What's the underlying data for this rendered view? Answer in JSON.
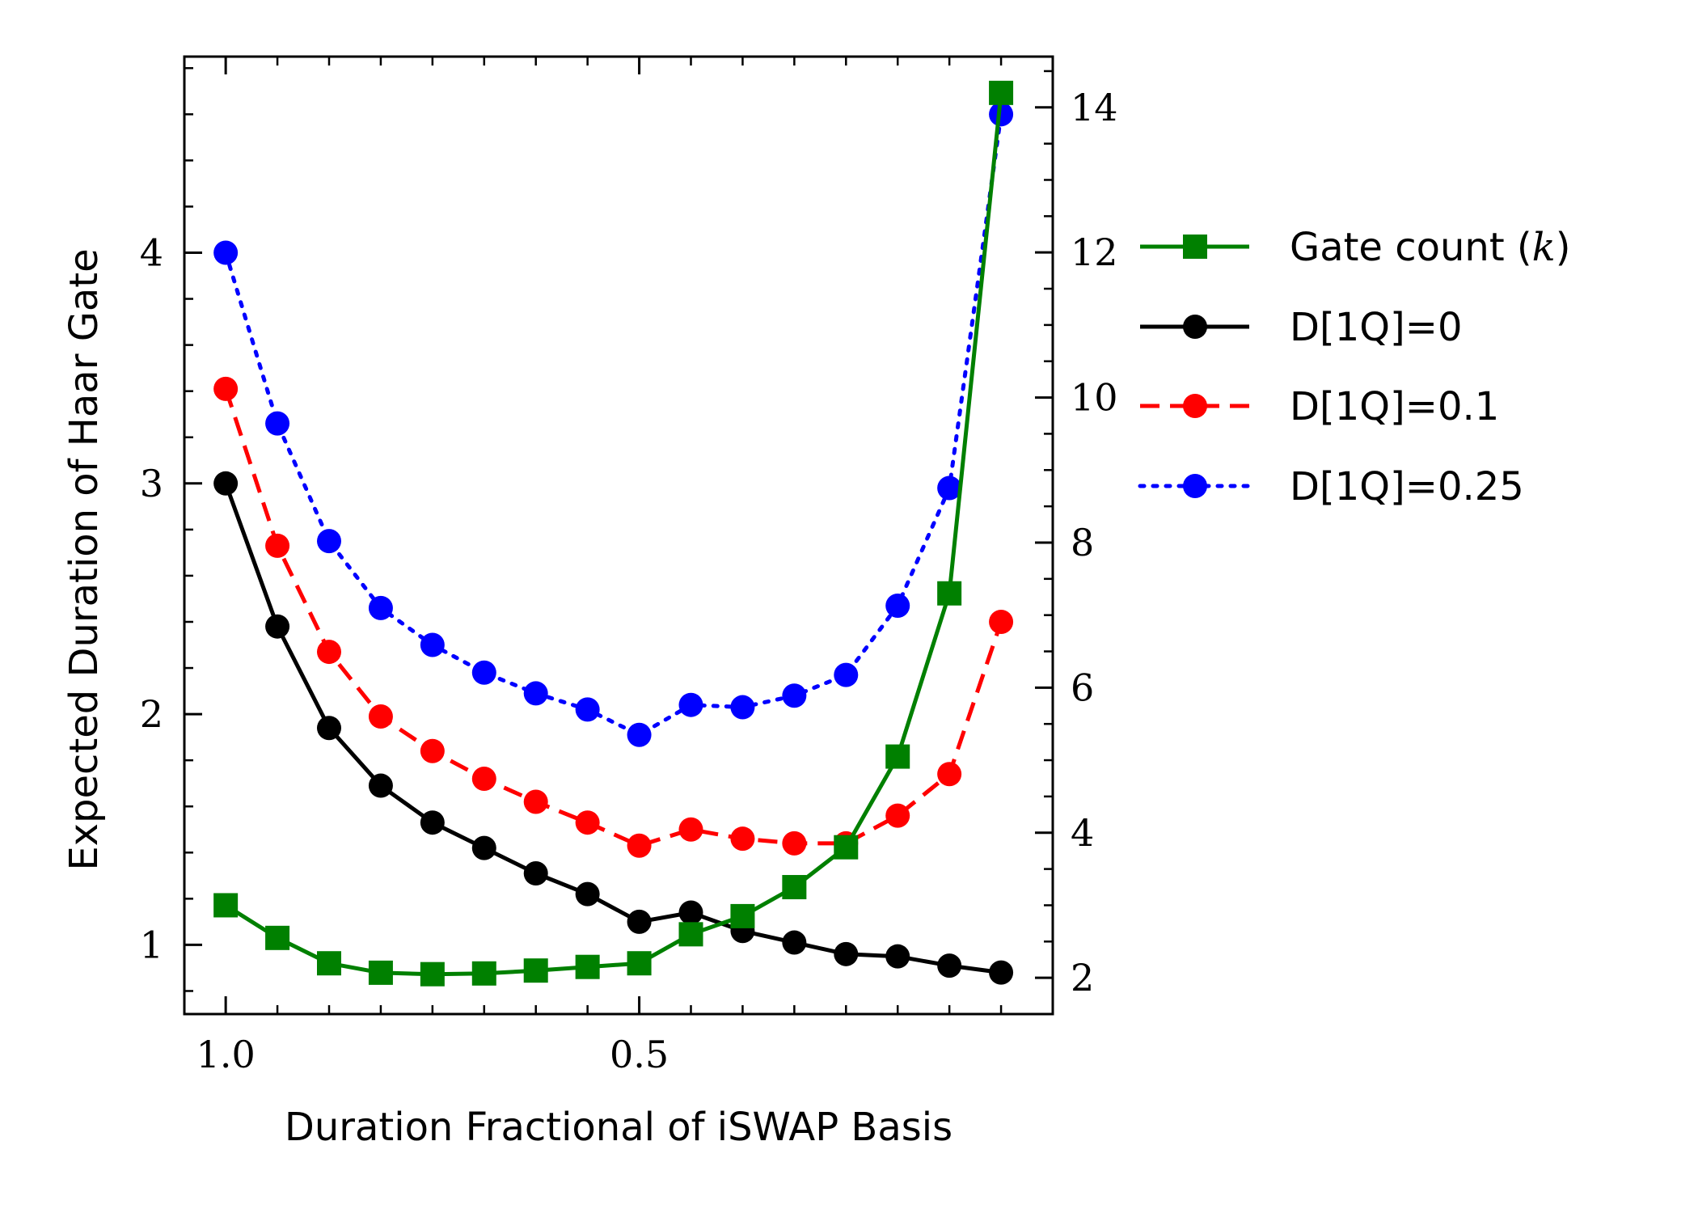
{
  "chart_data": {
    "type": "line",
    "xlabel": "Duration Fractional of iSWAP Basis",
    "ylabel_left": "Expected Duration of Haar Gate",
    "x": [
      1.0,
      0.9375,
      0.875,
      0.8125,
      0.75,
      0.6875,
      0.625,
      0.5625,
      0.5,
      0.4375,
      0.375,
      0.3125,
      0.25,
      0.1875,
      0.125,
      0.0625
    ],
    "xlim": [
      1.05,
      0.0
    ],
    "xticks": [
      1.0,
      0.5
    ],
    "xtick_labels": [
      "1.0",
      "0.5"
    ],
    "ylim_left": [
      0.7,
      4.85
    ],
    "yticks_left": [
      1,
      2,
      3,
      4
    ],
    "ylim_right": [
      1.5,
      14.7
    ],
    "yticks_right": [
      2,
      4,
      6,
      8,
      10,
      12,
      14
    ],
    "grid": false,
    "legend_position": "outside-right",
    "series": [
      {
        "name": "Gate count (k)",
        "axis": "right",
        "color": "#008000",
        "marker": "square",
        "line_style": "solid",
        "values": [
          3.0,
          2.55,
          2.2,
          2.07,
          2.05,
          2.06,
          2.1,
          2.15,
          2.2,
          2.6,
          2.85,
          3.25,
          3.8,
          5.05,
          7.3,
          14.2
        ]
      },
      {
        "name": "D[1Q]=0",
        "axis": "left",
        "color": "#000000",
        "marker": "circle",
        "line_style": "solid",
        "values": [
          3.0,
          2.38,
          1.94,
          1.69,
          1.53,
          1.42,
          1.31,
          1.22,
          1.1,
          1.14,
          1.06,
          1.01,
          0.96,
          0.95,
          0.91,
          0.88
        ]
      },
      {
        "name": "D[1Q]=0.1",
        "axis": "left",
        "color": "#ff0000",
        "marker": "circle",
        "line_style": "dashed",
        "values": [
          3.41,
          2.73,
          2.27,
          1.99,
          1.84,
          1.72,
          1.62,
          1.53,
          1.43,
          1.5,
          1.46,
          1.44,
          1.44,
          1.56,
          1.74,
          2.4
        ]
      },
      {
        "name": "D[1Q]=0.25",
        "axis": "left",
        "color": "#0000ff",
        "marker": "circle",
        "line_style": "dotted",
        "values": [
          4.0,
          3.26,
          2.75,
          2.46,
          2.3,
          2.18,
          2.09,
          2.02,
          1.91,
          2.04,
          2.03,
          2.08,
          2.17,
          2.47,
          2.98,
          4.6
        ]
      }
    ],
    "legend": {
      "entries": [
        {
          "prefix": "Gate count (",
          "math": "k",
          "suffix": ")"
        },
        {
          "prefix": "D[1Q]=0",
          "math": "",
          "suffix": ""
        },
        {
          "prefix": "D[1Q]=0.1",
          "math": "",
          "suffix": ""
        },
        {
          "prefix": "D[1Q]=0.25",
          "math": "",
          "suffix": ""
        }
      ]
    }
  }
}
